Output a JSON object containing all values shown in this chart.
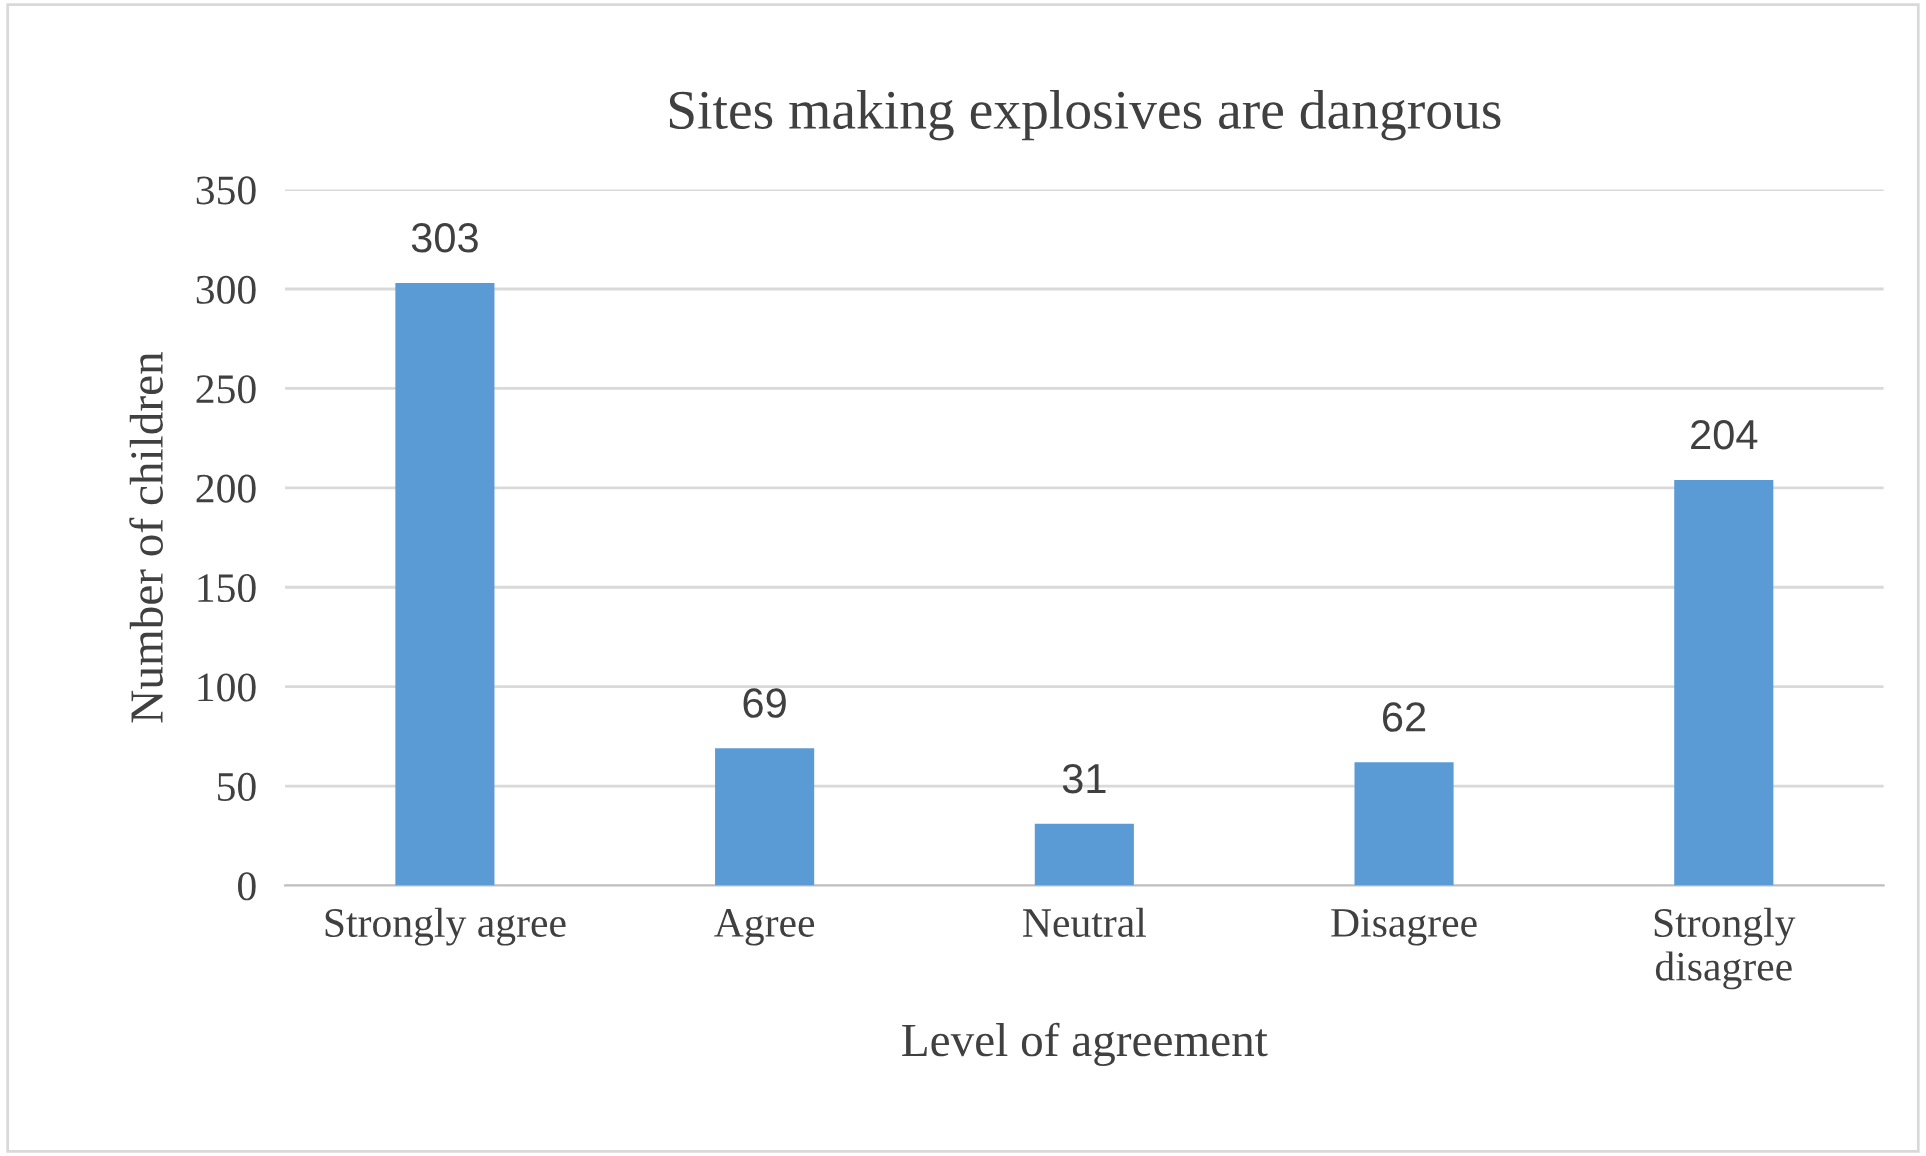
{
  "chart_data": {
    "type": "bar",
    "title": "Sites making explosives are dangrous",
    "xlabel": "Level of agreement",
    "ylabel": "Number of children",
    "categories": [
      "Strongly agree",
      "Agree",
      "Neutral",
      "Disagree",
      "Strongly\ndisagree"
    ],
    "values": [
      303,
      69,
      31,
      62,
      204
    ],
    "color": "#5b9bd5",
    "ylim": [
      0,
      350
    ],
    "yticks": [
      0,
      50,
      100,
      150,
      200,
      250,
      300,
      350
    ],
    "grid": "y",
    "data_labels": true,
    "legend": false
  }
}
